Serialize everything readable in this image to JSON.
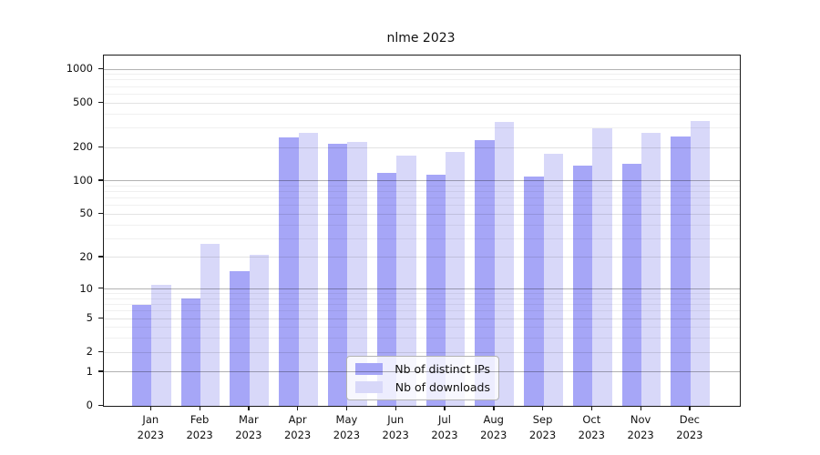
{
  "title": "nlme 2023",
  "chart_data": {
    "type": "bar",
    "title": "nlme 2023",
    "subtitle": "",
    "xlabel": "",
    "ylabel": "",
    "year": "2023",
    "categories": [
      "Jan",
      "Feb",
      "Mar",
      "Apr",
      "May",
      "Jun",
      "Jul",
      "Aug",
      "Sep",
      "Oct",
      "Nov",
      "Dec"
    ],
    "xtick_labels": [
      "Jan 2023",
      "Feb 2023",
      "Mar 2023",
      "Apr 2023",
      "May 2023",
      "Jun 2023",
      "Jul 2023",
      "Aug 2023",
      "Sep 2023",
      "Oct 2023",
      "Nov 2023",
      "Dec 2023"
    ],
    "series": [
      {
        "name": "Nb of distinct IPs",
        "color": "#a6a6f7",
        "values": [
          7,
          8,
          15,
          246,
          216,
          118,
          113,
          232,
          109,
          138,
          144,
          252
        ]
      },
      {
        "name": "Nb of downloads",
        "color": "#d8d8f9",
        "values": [
          11,
          27,
          21,
          269,
          222,
          168,
          181,
          338,
          174,
          296,
          270,
          347
        ]
      }
    ],
    "yticks": [
      0,
      1,
      2,
      5,
      10,
      20,
      50,
      100,
      200,
      500,
      1000
    ],
    "ylim": [
      0,
      1320
    ],
    "yscale": "log1p (y position proportional to log10(1+value), 0 at baseline)",
    "grid": "horizontal; dark lines at 1,10,100,1000; light at 2,5,20,50,200,500; faint minors between",
    "legend_position": "inside plot, lower center",
    "bar_colors": {
      "distinct_ips": "#a6a6f7",
      "downloads": "#d8d8f9"
    }
  },
  "legend": {
    "items": [
      {
        "label": "Nb of distinct IPs",
        "color": "#a6a6f7"
      },
      {
        "label": "Nb of downloads",
        "color": "#d8d8f9"
      }
    ]
  }
}
